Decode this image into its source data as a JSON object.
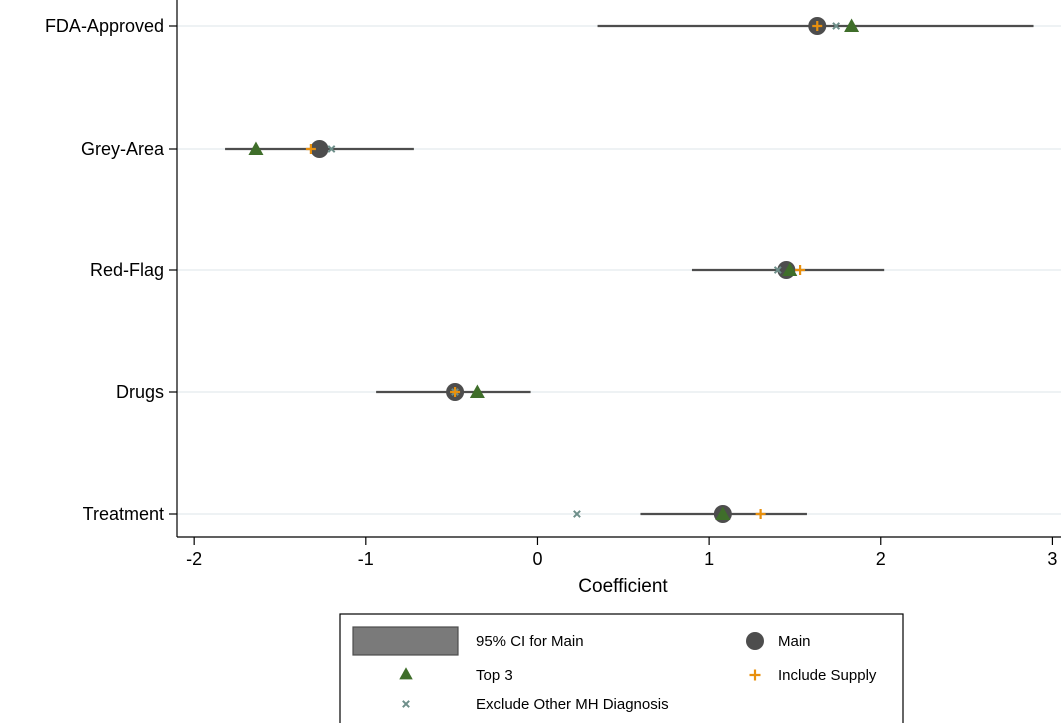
{
  "chart_data": {
    "type": "scatter",
    "orientation": "horizontal",
    "xlabel": "Coefficient",
    "xlim": [
      -2.1,
      3.05
    ],
    "xticks": [
      -2,
      -1,
      0,
      1,
      2,
      3
    ],
    "xtick_labels": [
      "-2",
      "-1",
      "0",
      "1",
      "2",
      "3"
    ],
    "grid": "horizontal",
    "categories": [
      "FDA-Approved",
      "Grey-Area",
      "Red-Flag",
      "Drugs",
      "Treatment"
    ],
    "ci": {
      "name": "95% CI for Main",
      "lower": [
        0.35,
        -1.82,
        0.9,
        -0.94,
        0.6
      ],
      "upper": [
        2.89,
        -0.72,
        2.02,
        -0.04,
        1.57
      ],
      "color": "#4d4d4d"
    },
    "series": [
      {
        "name": "Main",
        "marker": "circle",
        "color": "#4d4d4d",
        "values": [
          1.63,
          -1.27,
          1.45,
          -0.48,
          1.08
        ]
      },
      {
        "name": "Top 3",
        "marker": "triangle",
        "color": "#3f6e2a",
        "values": [
          1.83,
          -1.64,
          1.47,
          -0.35,
          1.08
        ]
      },
      {
        "name": "Include Supply",
        "marker": "plus",
        "color": "#e8900e",
        "values": [
          1.63,
          -1.32,
          1.53,
          -0.48,
          1.3
        ]
      },
      {
        "name": "Exclude Other MH Diagnosis",
        "marker": "x",
        "color": "#6e8f8a",
        "values": [
          1.74,
          -1.2,
          1.4,
          -0.48,
          0.23
        ]
      }
    ],
    "legend": {
      "position": "bottom",
      "entries": [
        {
          "label": "95% CI for Main",
          "key": "ci"
        },
        {
          "label": "Main",
          "key": "circle"
        },
        {
          "label": "Top 3",
          "key": "triangle"
        },
        {
          "label": "Include Supply",
          "key": "plus"
        },
        {
          "label": "Exclude Other MH Diagnosis",
          "key": "x"
        }
      ]
    }
  }
}
